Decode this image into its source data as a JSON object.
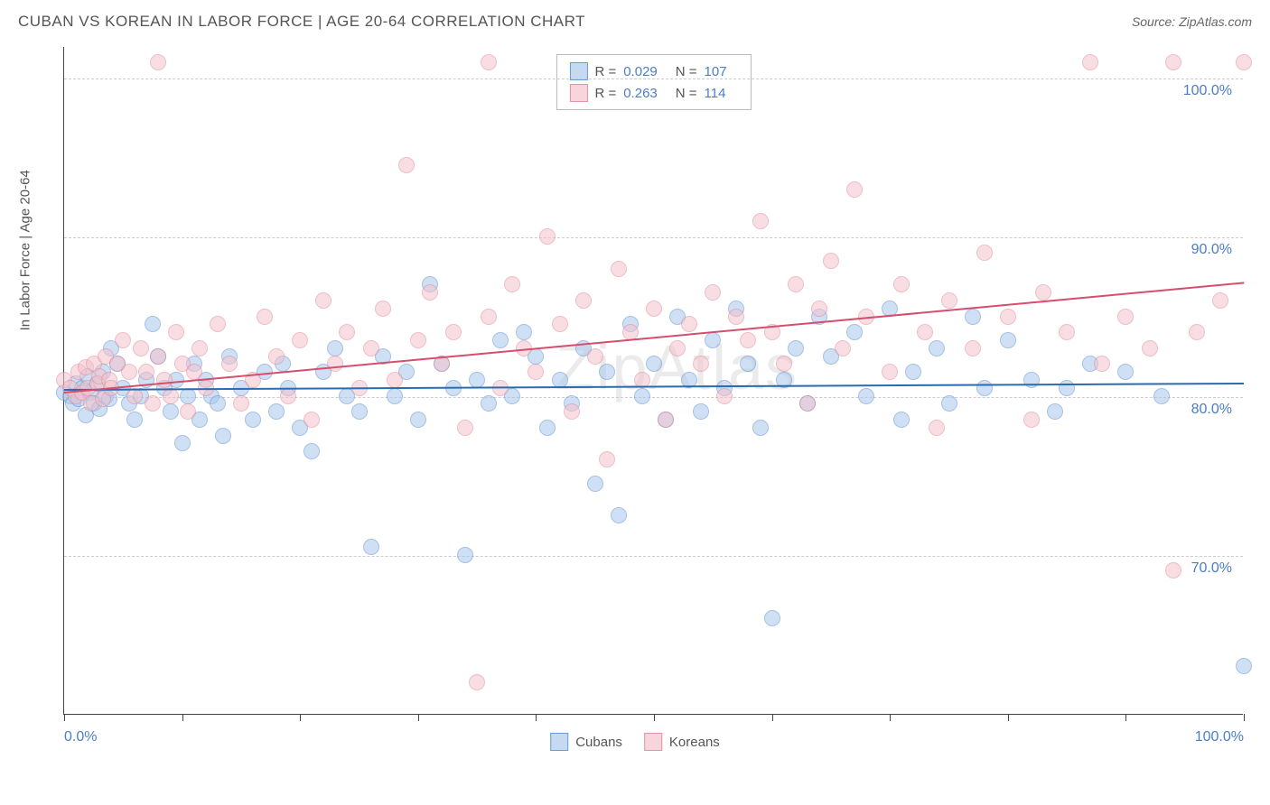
{
  "title": "CUBAN VS KOREAN IN LABOR FORCE | AGE 20-64 CORRELATION CHART",
  "source": "Source: ZipAtlas.com",
  "watermark": "ZipAtlas",
  "y_axis_label": "In Labor Force | Age 20-64",
  "chart": {
    "type": "scatter",
    "xlim": [
      0,
      100
    ],
    "ylim": [
      60,
      102
    ],
    "x_ticks": [
      0,
      10,
      20,
      30,
      40,
      50,
      60,
      70,
      80,
      90,
      100
    ],
    "x_tick_labels": {
      "0": "0.0%",
      "100": "100.0%"
    },
    "y_ticks": [
      70,
      80,
      90,
      100
    ],
    "y_tick_labels": {
      "70": "70.0%",
      "80": "80.0%",
      "90": "90.0%",
      "100": "100.0%"
    },
    "grid_color": "#cccccc",
    "background_color": "#ffffff",
    "point_radius": 9,
    "point_opacity": 0.55,
    "series": [
      {
        "name": "Cubans",
        "color_fill": "#a8c8ec",
        "color_stroke": "#5b8fd1",
        "swatch_fill": "#c5d9f1",
        "swatch_stroke": "#6a9bd8",
        "R": "0.029",
        "N": "107",
        "trend": {
          "y_start": 80.5,
          "y_end": 80.9,
          "color": "#2b6cb0"
        },
        "points": [
          [
            0,
            80.2
          ],
          [
            0.5,
            80
          ],
          [
            0.8,
            79.5
          ],
          [
            1,
            80.8
          ],
          [
            1.2,
            79.8
          ],
          [
            1.5,
            80.5
          ],
          [
            1.8,
            78.8
          ],
          [
            2,
            81.2
          ],
          [
            2.2,
            80.2
          ],
          [
            2.5,
            79.5
          ],
          [
            2.8,
            80.8
          ],
          [
            3,
            79.2
          ],
          [
            3.3,
            81.5
          ],
          [
            3.5,
            80
          ],
          [
            3.8,
            79.8
          ],
          [
            4,
            83
          ],
          [
            4.5,
            82
          ],
          [
            5,
            80.5
          ],
          [
            5.5,
            79.5
          ],
          [
            6,
            78.5
          ],
          [
            6.5,
            80
          ],
          [
            7,
            81
          ],
          [
            7.5,
            84.5
          ],
          [
            8,
            82.5
          ],
          [
            8.5,
            80.5
          ],
          [
            9,
            79
          ],
          [
            9.5,
            81
          ],
          [
            10,
            77
          ],
          [
            10.5,
            80
          ],
          [
            11,
            82
          ],
          [
            11.5,
            78.5
          ],
          [
            12,
            81
          ],
          [
            12.5,
            80
          ],
          [
            13,
            79.5
          ],
          [
            13.5,
            77.5
          ],
          [
            14,
            82.5
          ],
          [
            15,
            80.5
          ],
          [
            16,
            78.5
          ],
          [
            17,
            81.5
          ],
          [
            18,
            79
          ],
          [
            18.5,
            82
          ],
          [
            19,
            80.5
          ],
          [
            20,
            78
          ],
          [
            21,
            76.5
          ],
          [
            22,
            81.5
          ],
          [
            23,
            83
          ],
          [
            24,
            80
          ],
          [
            25,
            79
          ],
          [
            26,
            70.5
          ],
          [
            27,
            82.5
          ],
          [
            28,
            80
          ],
          [
            29,
            81.5
          ],
          [
            30,
            78.5
          ],
          [
            31,
            87
          ],
          [
            32,
            82
          ],
          [
            33,
            80.5
          ],
          [
            34,
            70
          ],
          [
            35,
            81
          ],
          [
            36,
            79.5
          ],
          [
            37,
            83.5
          ],
          [
            38,
            80
          ],
          [
            39,
            84
          ],
          [
            40,
            82.5
          ],
          [
            41,
            78
          ],
          [
            42,
            81
          ],
          [
            43,
            79.5
          ],
          [
            44,
            83
          ],
          [
            45,
            74.5
          ],
          [
            46,
            81.5
          ],
          [
            47,
            72.5
          ],
          [
            48,
            84.5
          ],
          [
            49,
            80
          ],
          [
            50,
            82
          ],
          [
            51,
            78.5
          ],
          [
            52,
            85
          ],
          [
            53,
            81
          ],
          [
            54,
            79
          ],
          [
            55,
            83.5
          ],
          [
            56,
            80.5
          ],
          [
            57,
            85.5
          ],
          [
            58,
            82
          ],
          [
            59,
            78
          ],
          [
            60,
            66
          ],
          [
            61,
            81
          ],
          [
            62,
            83
          ],
          [
            63,
            79.5
          ],
          [
            64,
            85
          ],
          [
            65,
            82.5
          ],
          [
            67,
            84
          ],
          [
            68,
            80
          ],
          [
            70,
            85.5
          ],
          [
            71,
            78.5
          ],
          [
            72,
            81.5
          ],
          [
            74,
            83
          ],
          [
            75,
            79.5
          ],
          [
            77,
            85
          ],
          [
            78,
            80.5
          ],
          [
            80,
            83.5
          ],
          [
            82,
            81
          ],
          [
            84,
            79
          ],
          [
            85,
            80.5
          ],
          [
            87,
            82
          ],
          [
            90,
            81.5
          ],
          [
            93,
            80
          ],
          [
            100,
            63
          ]
        ]
      },
      {
        "name": "Koreans",
        "color_fill": "#f4c2cc",
        "color_stroke": "#e08a9b",
        "swatch_fill": "#f8d5dd",
        "swatch_stroke": "#e293a5",
        "R": "0.263",
        "N": "114",
        "trend": {
          "y_start": 80.3,
          "y_end": 87.2,
          "color": "#d64d6e"
        },
        "points": [
          [
            0,
            81
          ],
          [
            0.5,
            80.5
          ],
          [
            1,
            80
          ],
          [
            1.2,
            81.5
          ],
          [
            1.5,
            80.2
          ],
          [
            1.8,
            81.8
          ],
          [
            2,
            80.5
          ],
          [
            2.3,
            79.5
          ],
          [
            2.5,
            82
          ],
          [
            2.8,
            80.8
          ],
          [
            3,
            81.2
          ],
          [
            3.3,
            79.8
          ],
          [
            3.5,
            82.5
          ],
          [
            3.8,
            81
          ],
          [
            4,
            80.5
          ],
          [
            4.5,
            82
          ],
          [
            5,
            83.5
          ],
          [
            5.5,
            81.5
          ],
          [
            6,
            80
          ],
          [
            6.5,
            83
          ],
          [
            7,
            81.5
          ],
          [
            7.5,
            79.5
          ],
          [
            8,
            82.5
          ],
          [
            8.5,
            81
          ],
          [
            9,
            80
          ],
          [
            9.5,
            84
          ],
          [
            10,
            82
          ],
          [
            10.5,
            79
          ],
          [
            11,
            81.5
          ],
          [
            11.5,
            83
          ],
          [
            12,
            80.5
          ],
          [
            13,
            84.5
          ],
          [
            14,
            82
          ],
          [
            15,
            79.5
          ],
          [
            16,
            81
          ],
          [
            17,
            85
          ],
          [
            18,
            82.5
          ],
          [
            19,
            80
          ],
          [
            20,
            83.5
          ],
          [
            21,
            78.5
          ],
          [
            22,
            86
          ],
          [
            23,
            82
          ],
          [
            24,
            84
          ],
          [
            25,
            80.5
          ],
          [
            26,
            83
          ],
          [
            27,
            85.5
          ],
          [
            28,
            81
          ],
          [
            29,
            94.5
          ],
          [
            30,
            83.5
          ],
          [
            31,
            86.5
          ],
          [
            32,
            82
          ],
          [
            33,
            84
          ],
          [
            34,
            78
          ],
          [
            35,
            62
          ],
          [
            36,
            85
          ],
          [
            37,
            80.5
          ],
          [
            38,
            87
          ],
          [
            39,
            83
          ],
          [
            40,
            81.5
          ],
          [
            41,
            90
          ],
          [
            42,
            84.5
          ],
          [
            43,
            79
          ],
          [
            44,
            86
          ],
          [
            45,
            82.5
          ],
          [
            46,
            76
          ],
          [
            47,
            88
          ],
          [
            48,
            84
          ],
          [
            49,
            81
          ],
          [
            50,
            85.5
          ],
          [
            51,
            78.5
          ],
          [
            52,
            83
          ],
          [
            53,
            84.5
          ],
          [
            54,
            82
          ],
          [
            55,
            86.5
          ],
          [
            56,
            80
          ],
          [
            57,
            85
          ],
          [
            58,
            83.5
          ],
          [
            59,
            91
          ],
          [
            60,
            84
          ],
          [
            61,
            82
          ],
          [
            62,
            87
          ],
          [
            63,
            79.5
          ],
          [
            64,
            85.5
          ],
          [
            65,
            88.5
          ],
          [
            66,
            83
          ],
          [
            67,
            93
          ],
          [
            68,
            85
          ],
          [
            70,
            81.5
          ],
          [
            71,
            87
          ],
          [
            73,
            84
          ],
          [
            74,
            78
          ],
          [
            75,
            86
          ],
          [
            77,
            83
          ],
          [
            78,
            89
          ],
          [
            80,
            85
          ],
          [
            82,
            78.5
          ],
          [
            83,
            86.5
          ],
          [
            85,
            84
          ],
          [
            87,
            101
          ],
          [
            88,
            82
          ],
          [
            90,
            85
          ],
          [
            92,
            83
          ],
          [
            94,
            101
          ],
          [
            96,
            84
          ],
          [
            98,
            86
          ],
          [
            94,
            69
          ],
          [
            100,
            101
          ],
          [
            36,
            101
          ],
          [
            8,
            101
          ]
        ]
      }
    ]
  },
  "bottom_legend": [
    {
      "label": "Cubans",
      "fill": "#c5d9f1",
      "stroke": "#6a9bd8"
    },
    {
      "label": "Koreans",
      "fill": "#f8d5dd",
      "stroke": "#e293a5"
    }
  ]
}
